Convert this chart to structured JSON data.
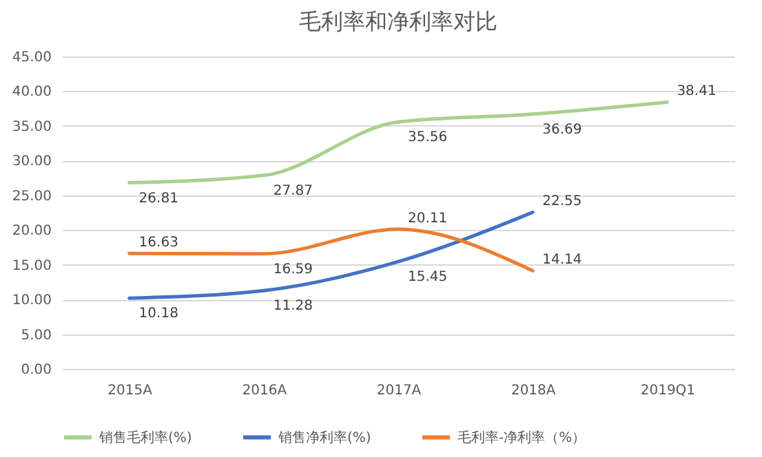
{
  "chart_data": {
    "type": "line",
    "title": "毛利率和净利率对比",
    "categories": [
      "2015A",
      "2016A",
      "2017A",
      "2018A",
      "2019Q1"
    ],
    "series": [
      {
        "name": "销售毛利率(%)",
        "color": "#a9d18e",
        "values": [
          26.81,
          27.87,
          35.56,
          36.69,
          38.41
        ]
      },
      {
        "name": "销售净利率(%)",
        "color": "#4472c4",
        "values": [
          10.18,
          11.28,
          15.45,
          22.55,
          null
        ]
      },
      {
        "name": "毛利率-净利率（%）",
        "color": "#ed7d31",
        "values": [
          16.63,
          16.59,
          20.11,
          14.14,
          null
        ]
      }
    ],
    "ylim": [
      0,
      45
    ],
    "yticks": [
      {
        "value": 0,
        "label": "0.00"
      },
      {
        "value": 5,
        "label": "5.00"
      },
      {
        "value": 10,
        "label": "10.00"
      },
      {
        "value": 15,
        "label": "15.00"
      },
      {
        "value": 20,
        "label": "20.00"
      },
      {
        "value": 25,
        "label": "25.00"
      },
      {
        "value": 30,
        "label": "30.00"
      },
      {
        "value": 35,
        "label": "35.00"
      },
      {
        "value": 40,
        "label": "40.00"
      },
      {
        "value": 45,
        "label": "45.00"
      }
    ],
    "grid": "y",
    "legend": "bottom",
    "marker": "none",
    "line_style": "solid",
    "data_labels": true
  }
}
